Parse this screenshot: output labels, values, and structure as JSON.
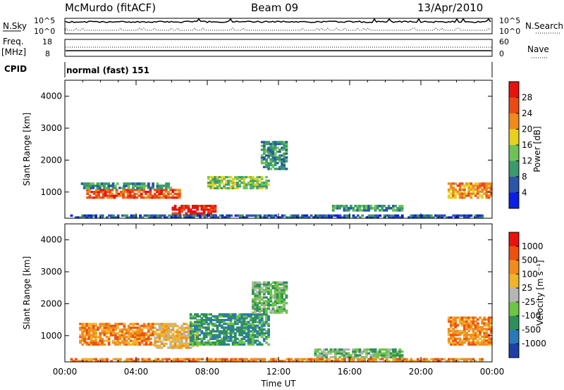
{
  "header": {
    "station": "McMurdo (fitACF)",
    "beam": "Beam 09",
    "date": "13/Apr/2010"
  },
  "status_panel": {
    "nsky_label": "N.Sky",
    "nsky_ticks": [
      "10^5",
      "10^0"
    ],
    "nsearch_label": "N.Search",
    "nsearch_ticks": [
      "10^5",
      "10^0"
    ],
    "freq_label": "Freq.",
    "freq_unit": "[MHz]",
    "freq_ticks": [
      "18",
      "8"
    ],
    "nave_label": "Nave",
    "nave_ticks": [
      "60",
      "0"
    ],
    "cpid_label": "CPID",
    "cpid_value": "normal (fast) 151"
  },
  "chart_data": [
    {
      "type": "heatmap",
      "parameter": "Power",
      "ylabel": "Slant Range [km]",
      "ylim": [
        180,
        4500
      ],
      "y_ticks": [
        "1000",
        "2000",
        "3000",
        "4000"
      ],
      "x_ticks": [
        "00:00",
        "04:00",
        "08:00",
        "12:00",
        "16:00",
        "20:00",
        "00:00"
      ],
      "colorbar_label": "Power [dB]",
      "colorbar_ticks": [
        "4",
        "8",
        "12",
        "16",
        "20",
        "24",
        "28"
      ],
      "colors": [
        "#0a1ee6",
        "#2a56a8",
        "#3a9a6a",
        "#6ec25a",
        "#e8d020",
        "#f08a1e",
        "#ea4a16",
        "#e6120e"
      ],
      "regions": [
        {
          "t0": 1.2,
          "t1": 6.5,
          "r0": 800,
          "r1": 1100,
          "level": 6
        },
        {
          "t0": 0.9,
          "t1": 6.0,
          "r0": 1100,
          "r1": 1300,
          "level": 2
        },
        {
          "t0": 6.0,
          "t1": 8.5,
          "r0": 250,
          "r1": 600,
          "level": 7
        },
        {
          "t0": 8.0,
          "t1": 11.5,
          "r0": 1100,
          "r1": 1500,
          "level": 3
        },
        {
          "t0": 11.0,
          "t1": 12.5,
          "r0": 1700,
          "r1": 2600,
          "level": 2
        },
        {
          "t0": 15.0,
          "t1": 19.0,
          "r0": 400,
          "r1": 600,
          "level": 2
        },
        {
          "t0": 21.5,
          "t1": 24.0,
          "r0": 800,
          "r1": 1300,
          "level": 5
        },
        {
          "t0": 0.3,
          "t1": 23.5,
          "r0": 180,
          "r1": 300,
          "level": 1
        }
      ]
    },
    {
      "type": "heatmap",
      "parameter": "Velocity",
      "ylabel": "Slant Range [km]",
      "ylim": [
        180,
        4500
      ],
      "y_ticks": [
        "1000",
        "2000",
        "3000",
        "4000"
      ],
      "x_ticks": [
        "00:00",
        "04:00",
        "08:00",
        "12:00",
        "16:00",
        "20:00",
        "00:00"
      ],
      "xlabel": "Time UT",
      "colorbar_label": "Velocity [m s⁻¹]",
      "colorbar_ticks": [
        "1000",
        "500",
        "100",
        "25",
        "-25",
        "-100",
        "-500",
        "-1000"
      ],
      "colors": [
        "#1f3fa8",
        "#2a78b8",
        "#2f8f5a",
        "#6cc544",
        "#b5b5b5",
        "#f0b42a",
        "#f08c1e",
        "#ee5010",
        "#e8120e"
      ],
      "regions": [
        {
          "t0": 0.8,
          "t1": 5.0,
          "r0": 700,
          "r1": 1400,
          "level": 6
        },
        {
          "t0": 5.0,
          "t1": 7.5,
          "r0": 600,
          "r1": 1400,
          "level": 5
        },
        {
          "t0": 7.0,
          "t1": 11.5,
          "r0": 700,
          "r1": 1700,
          "level": 2
        },
        {
          "t0": 10.5,
          "t1": 12.5,
          "r0": 1700,
          "r1": 2700,
          "level": 3
        },
        {
          "t0": 14.0,
          "t1": 19.0,
          "r0": 300,
          "r1": 600,
          "level": 3
        },
        {
          "t0": 21.5,
          "t1": 24.0,
          "r0": 700,
          "r1": 1600,
          "level": 6
        },
        {
          "t0": 0.3,
          "t1": 23.5,
          "r0": 180,
          "r1": 300,
          "level": 6
        }
      ]
    }
  ]
}
